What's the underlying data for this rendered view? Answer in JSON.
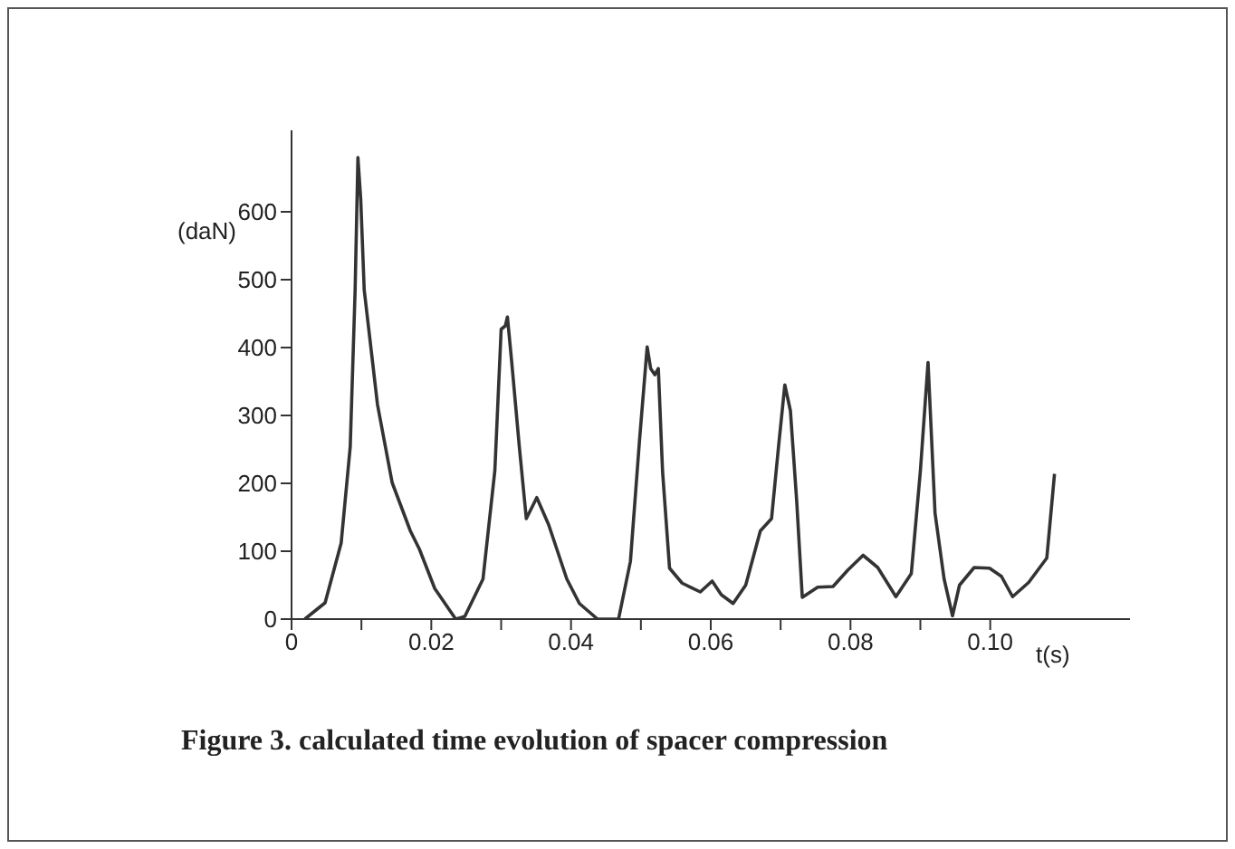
{
  "chart_data": {
    "type": "line",
    "title": "Figure 3. calculated time evolution of spacer compression",
    "xlabel": "t(s)",
    "ylabel": "(daN)",
    "xlim": [
      0,
      0.12
    ],
    "ylim": [
      0,
      720
    ],
    "xticks": [
      0,
      {
        "value": 0.01,
        "label": null
      },
      {
        "value": 0.02,
        "label": "0.02"
      },
      {
        "value": 0.03,
        "label": null
      },
      {
        "value": 0.04,
        "label": "0.04"
      },
      {
        "value": 0.05,
        "label": null
      },
      {
        "value": 0.06,
        "label": "0.06"
      },
      {
        "value": 0.07,
        "label": null
      },
      {
        "value": 0.08,
        "label": "0.08"
      },
      {
        "value": 0.09,
        "label": null
      },
      {
        "value": 0.1,
        "label": "0.10"
      }
    ],
    "yticks": [
      0,
      100,
      200,
      300,
      400,
      500,
      600
    ],
    "series": [
      {
        "color": "#333333",
        "x": [
          0.0019,
          0.0048,
          0.0071,
          0.0084,
          0.0091,
          0.0095,
          0.0099,
          0.0104,
          0.0123,
          0.0144,
          0.017,
          0.0183,
          0.0205,
          0.0235,
          0.0248,
          0.0274,
          0.0291,
          0.03,
          0.0306,
          0.0309,
          0.0315,
          0.0326,
          0.0336,
          0.0351,
          0.0368,
          0.0394,
          0.0412,
          0.0438,
          0.0468,
          0.0485,
          0.0498,
          0.0509,
          0.0514,
          0.052,
          0.0525,
          0.0531,
          0.0541,
          0.0559,
          0.0585,
          0.0602,
          0.0615,
          0.0632,
          0.065,
          0.0671,
          0.0687,
          0.0697,
          0.0706,
          0.0714,
          0.0723,
          0.0731,
          0.0753,
          0.0775,
          0.0796,
          0.0818,
          0.0839,
          0.0865,
          0.0887,
          0.09,
          0.0911,
          0.0921,
          0.0934,
          0.0946,
          0.0956,
          0.0977,
          0.0999,
          0.1016,
          0.1032,
          0.1055,
          0.1081,
          0.1092
        ],
        "values": [
          0,
          24,
          112,
          254,
          485,
          680,
          619,
          485,
          316,
          201,
          130,
          103,
          45,
          0,
          4,
          59,
          219,
          427,
          432,
          445,
          380,
          254,
          148,
          179,
          139,
          59,
          23,
          0,
          0,
          85,
          263,
          401,
          369,
          360,
          369,
          218,
          75,
          53,
          40,
          56,
          36,
          23,
          50,
          130,
          148,
          254,
          345,
          307,
          174,
          32,
          47,
          48,
          72,
          94,
          76,
          33,
          67,
          218,
          378,
          156,
          59,
          5,
          50,
          76,
          75,
          63,
          33,
          54,
          90,
          214
        ]
      }
    ]
  }
}
